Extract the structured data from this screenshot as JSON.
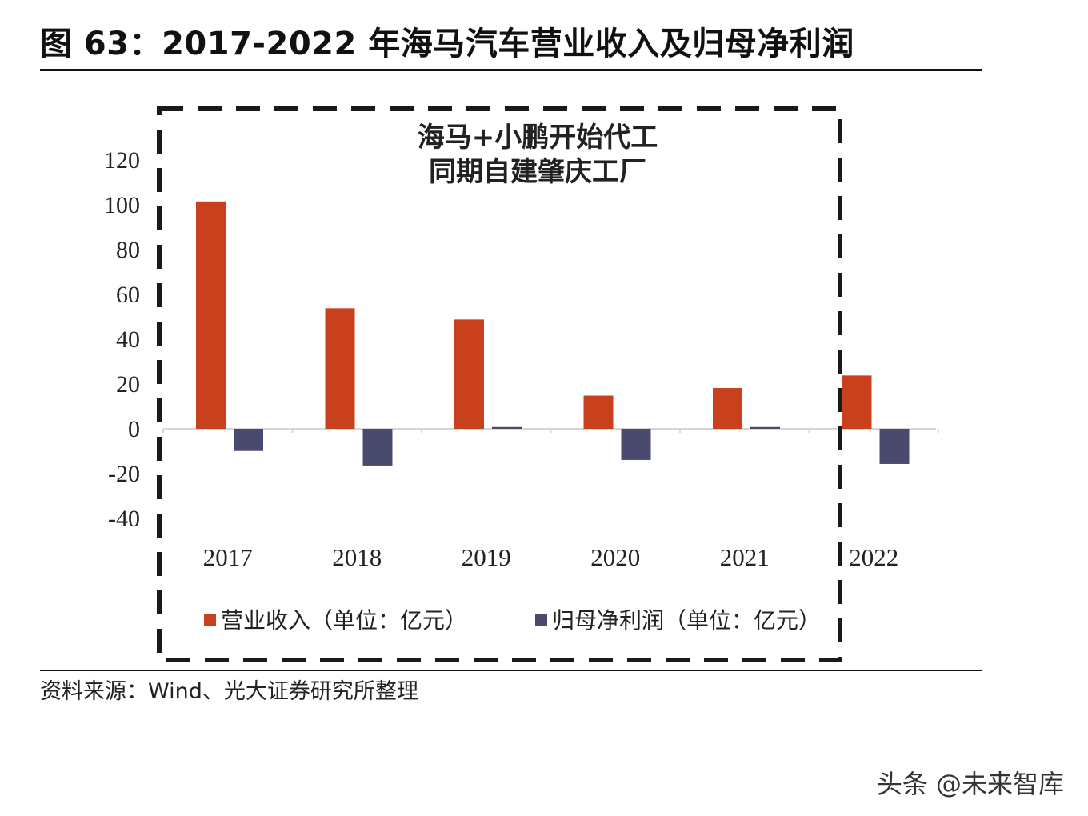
{
  "figure": {
    "title": "图 63：2017-2022 年海马汽车营业收入及归母净利润",
    "source": "资料来源：Wind、光大证券研究所整理",
    "watermark": "头条 @未来智库"
  },
  "chart_data": {
    "type": "bar",
    "categories": [
      "2017",
      "2018",
      "2019",
      "2020",
      "2021",
      "2022"
    ],
    "series": [
      {
        "name": "营业收入（单位：亿元）",
        "color": "#c8401c",
        "values": [
          101.5,
          53.8,
          48.8,
          14.8,
          18.2,
          23.8
        ]
      },
      {
        "name": "归母净利润（单位：亿元）",
        "color": "#4a4a6e",
        "values": [
          -9.9,
          -16.4,
          0.8,
          -13.9,
          0.8,
          -15.7
        ]
      }
    ],
    "y_ticks": [
      "120",
      "100",
      "80",
      "60",
      "40",
      "20",
      "0",
      "-20",
      "-40"
    ],
    "ylim": [
      -40,
      120
    ],
    "annotation": [
      "海马+小鹏开始代工",
      "同期自建肇庆工厂"
    ],
    "grid": false,
    "legend_position": "bottom"
  }
}
